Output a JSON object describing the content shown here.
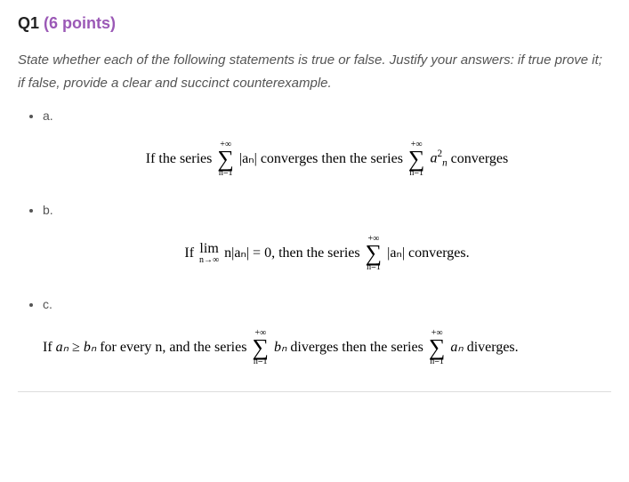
{
  "colors": {
    "accent": "#9b59b6",
    "text_primary": "#222222",
    "text_body": "#555555",
    "math_text": "#000000",
    "divider": "#dddddd",
    "background": "#ffffff"
  },
  "typography": {
    "header_fontsize_pt": 18,
    "body_fontsize_pt": 15,
    "part_label_fontsize_pt": 14,
    "math_fontsize_pt": 16,
    "math_font_family": "Georgia, Times New Roman, serif"
  },
  "header": {
    "question_number": "Q1",
    "points_label": "(6 points)"
  },
  "instructions": "State whether each of the following statements is true or false. Justify your answers: if true prove it; if false, provide a clear and succinct counterexample.",
  "parts": [
    {
      "label": "a.",
      "math": {
        "prefix": "If the series",
        "sum1_top": "+∞",
        "sum1_bot": "n=1",
        "sum1_body": "|aₙ|",
        "mid": "converges then the series",
        "sum2_top": "+∞",
        "sum2_bot": "n=1",
        "sum2_body_base": "a",
        "sum2_body_sup": "2",
        "sum2_body_sub": "n",
        "suffix": "converges"
      }
    },
    {
      "label": "b.",
      "math": {
        "prefix": "If",
        "lim_label": "lim",
        "lim_sub": "n→∞",
        "lim_expr": "n|aₙ| = 0,",
        "mid": "then the series",
        "sum_top": "+∞",
        "sum_bot": "n=1",
        "sum_body": "|aₙ|",
        "suffix": "converges."
      }
    },
    {
      "label": "c.",
      "math": {
        "prefix": "If",
        "ineq_lhs": "aₙ ≥ bₙ",
        "ineq_mid": "for every n, and the series",
        "sum1_top": "+∞",
        "sum1_bot": "n=1",
        "sum1_body": "bₙ",
        "mid2": "diverges then the series",
        "sum2_top": "+∞",
        "sum2_bot": "n=1",
        "sum2_body": "aₙ",
        "suffix": "diverges."
      }
    }
  ]
}
